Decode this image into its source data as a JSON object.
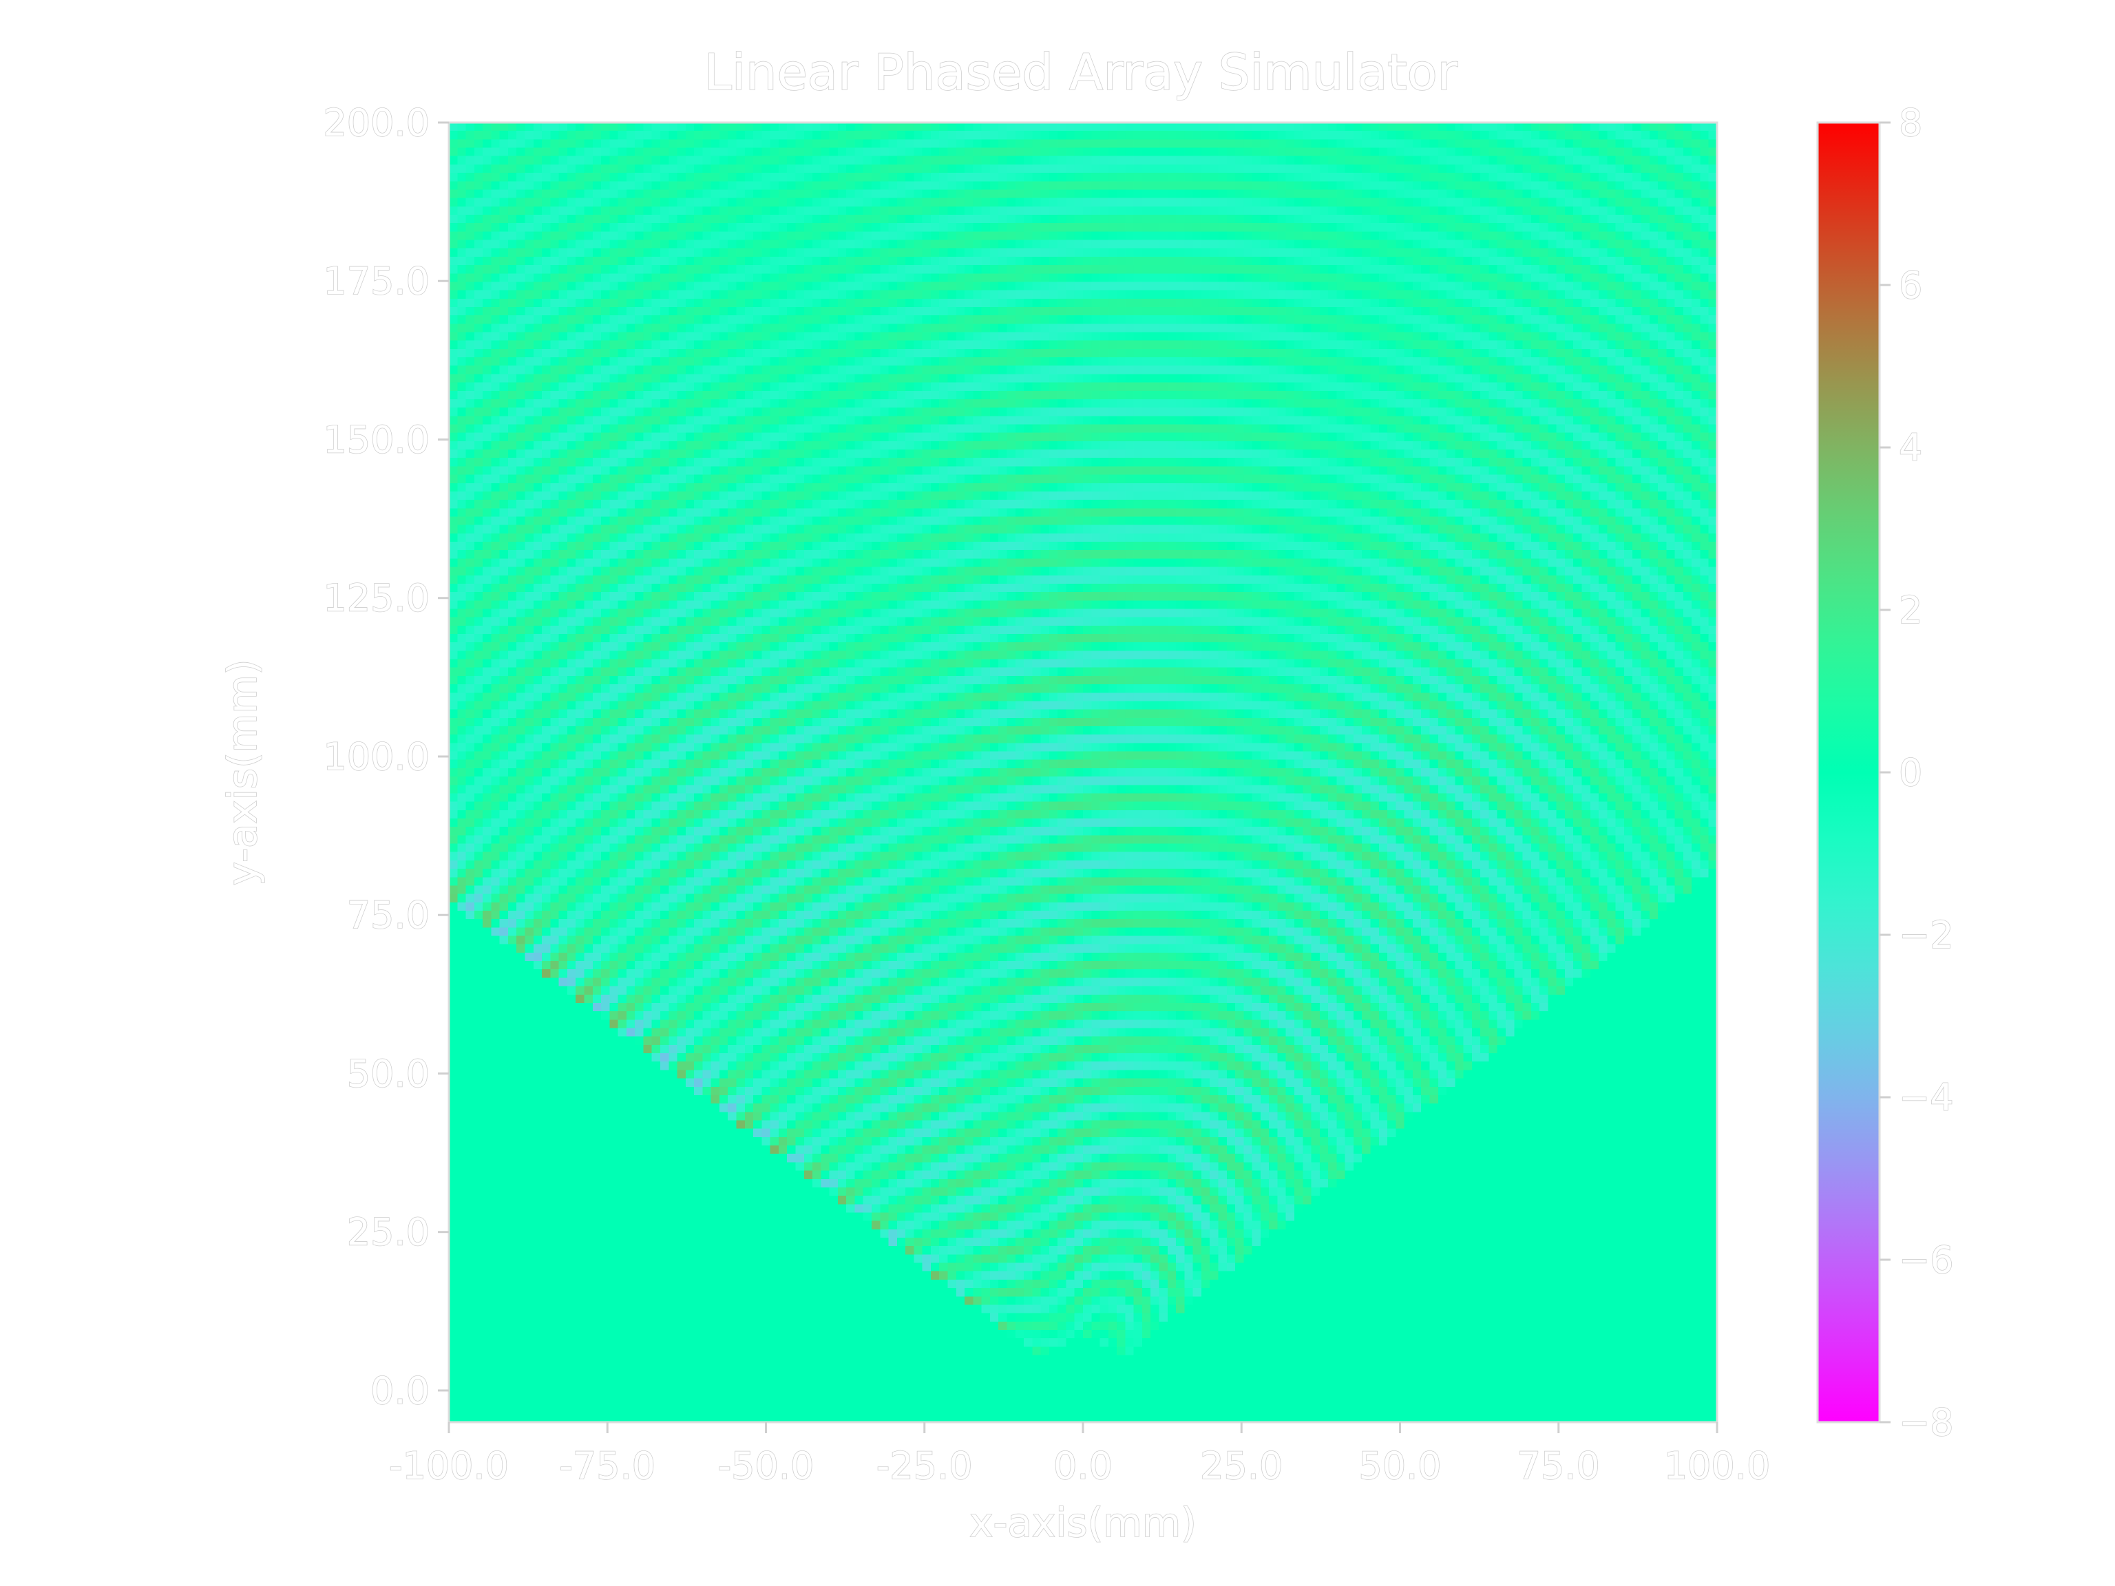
{
  "chart_data": {
    "type": "heatmap",
    "title": "Linear Phased Array Simulator",
    "xlabel": "x-axis(mm)",
    "ylabel": "y-axis(mm)",
    "xlim": [
      -100.0,
      100.0
    ],
    "ylim": [
      -5.0,
      200.0
    ],
    "x_ticks": [
      "-100.0",
      "-75.0",
      "-50.0",
      "-25.0",
      "0.0",
      "25.0",
      "50.0",
      "75.0",
      "100.0"
    ],
    "x_tick_values": [
      -100,
      -75,
      -50,
      -25,
      0,
      25,
      50,
      75,
      100
    ],
    "y_ticks": [
      "0.0",
      "25.0",
      "50.0",
      "75.0",
      "100.0",
      "125.0",
      "150.0",
      "175.0",
      "200.0"
    ],
    "y_tick_values": [
      0,
      25,
      50,
      75,
      100,
      125,
      150,
      175,
      200
    ],
    "colormap": "rainbow",
    "colorbar": {
      "range": [
        -8,
        8
      ],
      "ticks": [
        "8",
        "6",
        "4",
        "2",
        "0",
        "−2",
        "−4",
        "−6",
        "−8"
      ],
      "tick_values": [
        8,
        6,
        4,
        2,
        0,
        -2,
        -4,
        -6,
        -8
      ],
      "colors": [
        "#7f00ff",
        "#1996f3",
        "#4df3ce",
        "#b2f396",
        "#ff964f",
        "#ff0000"
      ]
    },
    "background_value": 0,
    "beam": {
      "origin": [
        0,
        0
      ],
      "steer_direction": "upper-left",
      "max_amplitude": 8,
      "wavelength_mm": 6.5
    },
    "grid": false
  }
}
